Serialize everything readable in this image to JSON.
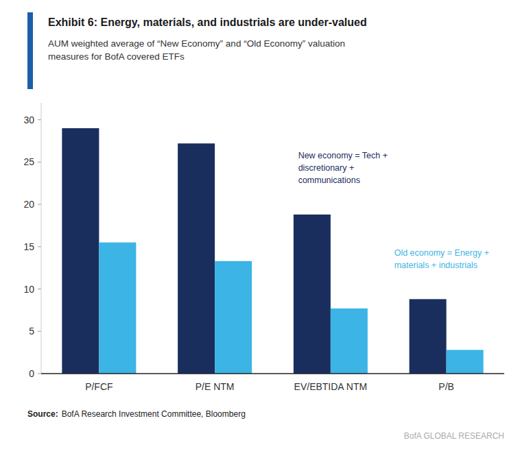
{
  "chart_data": {
    "type": "bar",
    "title": "Exhibit 6: Energy, materials, and industrials are under-valued",
    "subtitle": "AUM weighted average of “New Economy” and “Old Economy” valuation\nmeasures for BofA covered ETFs",
    "categories": [
      "P/FCF",
      "P/E NTM",
      "EV/EBTIDA NTM",
      "P/B"
    ],
    "series": [
      {
        "color": "#1a2e5e",
        "values": [
          29.0,
          27.2,
          18.8,
          8.8
        ]
      },
      {
        "color": "#3cb4e5",
        "values": [
          15.5,
          13.3,
          7.7,
          2.8
        ]
      }
    ],
    "annotations": [
      {
        "text": "New economy = Tech +\ndiscretionary +\ncommunications",
        "color": "#1a2e5e"
      },
      {
        "text": "Old economy = Energy +\nmaterials + industrials",
        "color": "#3cb4e5"
      }
    ],
    "source_label": "Source:",
    "source": "BofA Research Investment Committee, Bloomberg",
    "branding": "BofA GLOBAL RESEARCH",
    "ylim": [
      0,
      32
    ],
    "yticks": [
      0,
      5,
      10,
      15,
      20,
      25,
      30
    ],
    "grid": false
  }
}
